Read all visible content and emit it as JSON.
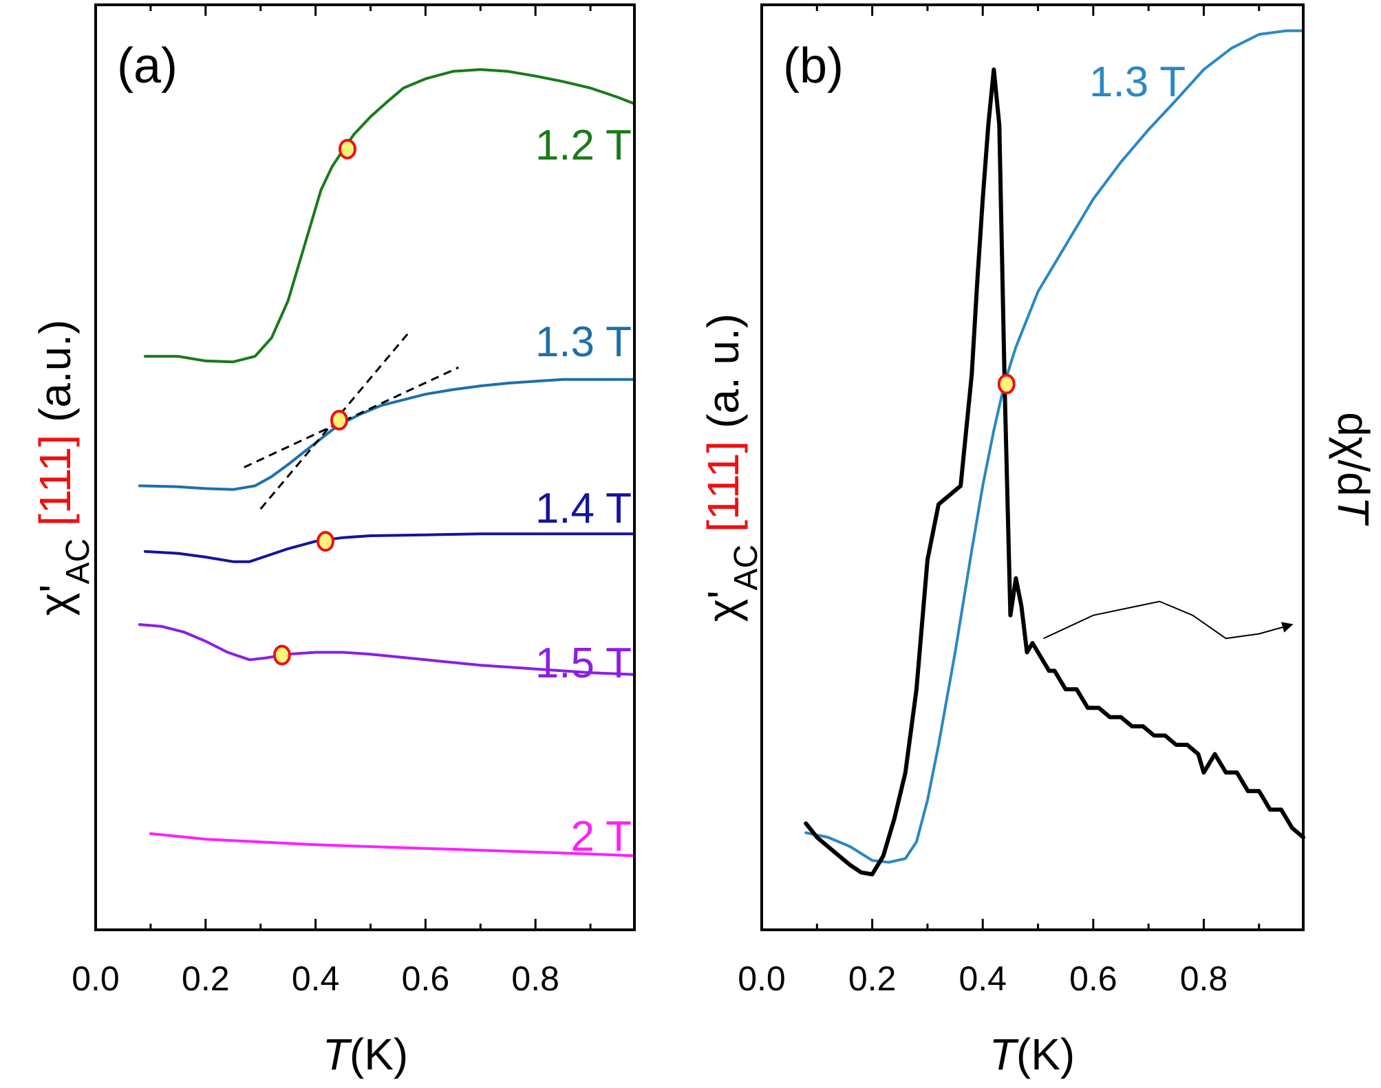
{
  "chart_data": [
    {
      "panel": "(a)",
      "type": "line",
      "xlabel_symbol": "T",
      "xlabel_unit": "(K)",
      "ylabel_prefix": "χ'",
      "ylabel_sub": "AC",
      "ylabel_index": "[111]",
      "ylabel_unit": "(a.u.)",
      "xlim": [
        0.0,
        0.98
      ],
      "ylim": [
        0,
        1
      ],
      "xticks": [
        "0.0",
        "0.2",
        "0.4",
        "0.6",
        "0.8"
      ],
      "xtick_values": [
        0.0,
        0.2,
        0.4,
        0.6,
        0.8
      ],
      "minor_xtick_values": [
        0.1,
        0.3,
        0.5,
        0.7,
        0.9
      ],
      "y_scale": "arbitrary units (curves offset vertically)",
      "series": [
        {
          "name": "1.2 T",
          "color": "#1a7a1a",
          "x": [
            0.09,
            0.15,
            0.2,
            0.25,
            0.29,
            0.32,
            0.35,
            0.37,
            0.39,
            0.41,
            0.43,
            0.45,
            0.47,
            0.5,
            0.53,
            0.56,
            0.6,
            0.65,
            0.7,
            0.75,
            0.8,
            0.85,
            0.9,
            0.95,
            0.98
          ],
          "y": [
            0.62,
            0.62,
            0.615,
            0.614,
            0.62,
            0.64,
            0.68,
            0.72,
            0.76,
            0.8,
            0.825,
            0.843,
            0.86,
            0.879,
            0.895,
            0.91,
            0.92,
            0.928,
            0.93,
            0.928,
            0.923,
            0.917,
            0.91,
            0.9,
            0.893
          ]
        },
        {
          "name": "1.3 T",
          "color": "#1f6fa8",
          "x": [
            0.08,
            0.15,
            0.2,
            0.25,
            0.29,
            0.32,
            0.35,
            0.38,
            0.41,
            0.44,
            0.48,
            0.52,
            0.56,
            0.6,
            0.65,
            0.7,
            0.75,
            0.8,
            0.85,
            0.9,
            0.95,
            0.98
          ],
          "y": [
            0.48,
            0.479,
            0.477,
            0.476,
            0.48,
            0.49,
            0.503,
            0.517,
            0.531,
            0.545,
            0.557,
            0.567,
            0.573,
            0.579,
            0.584,
            0.588,
            0.591,
            0.593,
            0.595,
            0.595,
            0.595,
            0.595
          ]
        },
        {
          "name": "1.4 T",
          "color": "#14149c",
          "x": [
            0.09,
            0.15,
            0.2,
            0.25,
            0.28,
            0.31,
            0.35,
            0.4,
            0.45,
            0.5,
            0.6,
            0.7,
            0.8,
            0.9,
            0.98
          ],
          "y": [
            0.409,
            0.407,
            0.403,
            0.398,
            0.398,
            0.404,
            0.412,
            0.42,
            0.424,
            0.426,
            0.427,
            0.428,
            0.428,
            0.428,
            0.428
          ]
        },
        {
          "name": "1.5 T",
          "color": "#8b1ee6",
          "x": [
            0.08,
            0.12,
            0.16,
            0.2,
            0.24,
            0.28,
            0.31,
            0.35,
            0.4,
            0.45,
            0.5,
            0.6,
            0.7,
            0.8,
            0.9,
            0.98
          ],
          "y": [
            0.33,
            0.328,
            0.322,
            0.312,
            0.3,
            0.292,
            0.294,
            0.298,
            0.3,
            0.3,
            0.298,
            0.292,
            0.286,
            0.282,
            0.278,
            0.276
          ]
        },
        {
          "name": "2 T",
          "color": "#ff1fff",
          "x": [
            0.1,
            0.2,
            0.3,
            0.4,
            0.5,
            0.6,
            0.7,
            0.8,
            0.9,
            0.98
          ],
          "y": [
            0.104,
            0.098,
            0.095,
            0.092,
            0.09,
            0.088,
            0.086,
            0.084,
            0.082,
            0.08
          ]
        }
      ],
      "markers": [
        {
          "series": "1.2 T",
          "x": 0.458,
          "y": 0.844
        },
        {
          "series": "1.3 T",
          "x": 0.443,
          "y": 0.551
        },
        {
          "series": "1.4 T",
          "x": 0.418,
          "y": 0.42
        },
        {
          "series": "1.5 T",
          "x": 0.339,
          "y": 0.297
        }
      ],
      "tangent_lines": [
        {
          "x": [
            0.3,
            0.57
          ],
          "y": [
            0.455,
            0.646
          ]
        },
        {
          "x": [
            0.27,
            0.66
          ],
          "y": [
            0.5,
            0.608
          ]
        }
      ]
    },
    {
      "panel": "(b)",
      "type": "line",
      "xlabel_symbol": "T",
      "xlabel_unit": "(K)",
      "ylabel_prefix": "χ'",
      "ylabel_sub": "AC",
      "ylabel_index": "[111]",
      "ylabel_unit": "(a. u.)",
      "right_ylabel": "dχ/d",
      "right_ylabel_symbol": "T",
      "xlim": [
        0.0,
        0.98
      ],
      "ylim": [
        0,
        1
      ],
      "xticks": [
        "0.0",
        "0.2",
        "0.4",
        "0.6",
        "0.8"
      ],
      "xtick_values": [
        0.0,
        0.2,
        0.4,
        0.6,
        0.8
      ],
      "minor_xtick_values": [
        0.1,
        0.3,
        0.5,
        0.7,
        0.9
      ],
      "y_scale": "arbitrary units",
      "series": [
        {
          "name": "1.3 T",
          "color": "#2a88c2",
          "axis": "left",
          "x": [
            0.08,
            0.12,
            0.16,
            0.2,
            0.23,
            0.26,
            0.28,
            0.3,
            0.32,
            0.35,
            0.38,
            0.4,
            0.42,
            0.44,
            0.46,
            0.48,
            0.5,
            0.55,
            0.6,
            0.65,
            0.7,
            0.75,
            0.8,
            0.85,
            0.9,
            0.95,
            0.98
          ],
          "y": [
            0.105,
            0.1,
            0.09,
            0.075,
            0.073,
            0.077,
            0.095,
            0.14,
            0.2,
            0.3,
            0.41,
            0.48,
            0.54,
            0.592,
            0.63,
            0.66,
            0.69,
            0.74,
            0.79,
            0.83,
            0.865,
            0.897,
            0.93,
            0.953,
            0.968,
            0.972,
            0.972
          ]
        },
        {
          "name": "dχ/dT",
          "color": "#000000",
          "axis": "right",
          "x": [
            0.08,
            0.1,
            0.12,
            0.14,
            0.16,
            0.18,
            0.2,
            0.22,
            0.24,
            0.26,
            0.28,
            0.3,
            0.32,
            0.34,
            0.36,
            0.38,
            0.39,
            0.4,
            0.41,
            0.42,
            0.43,
            0.44,
            0.45,
            0.46,
            0.47,
            0.48,
            0.49,
            0.5,
            0.51,
            0.52,
            0.53,
            0.55,
            0.57,
            0.59,
            0.61,
            0.63,
            0.65,
            0.67,
            0.69,
            0.71,
            0.73,
            0.75,
            0.77,
            0.79,
            0.8,
            0.82,
            0.84,
            0.86,
            0.88,
            0.9,
            0.92,
            0.94,
            0.96,
            0.98
          ],
          "y": [
            0.115,
            0.1,
            0.09,
            0.08,
            0.07,
            0.062,
            0.06,
            0.08,
            0.12,
            0.17,
            0.26,
            0.4,
            0.46,
            0.47,
            0.48,
            0.6,
            0.7,
            0.79,
            0.87,
            0.93,
            0.87,
            0.58,
            0.34,
            0.38,
            0.35,
            0.3,
            0.31,
            0.3,
            0.29,
            0.28,
            0.28,
            0.26,
            0.26,
            0.24,
            0.24,
            0.23,
            0.23,
            0.22,
            0.22,
            0.21,
            0.21,
            0.2,
            0.2,
            0.19,
            0.17,
            0.19,
            0.17,
            0.17,
            0.15,
            0.15,
            0.13,
            0.13,
            0.11,
            0.1
          ]
        }
      ],
      "markers": [
        {
          "series": "1.3 T",
          "x": 0.443,
          "y": 0.59
        }
      ],
      "annotations": [
        {
          "type": "arrow",
          "text": "",
          "points_x": [
            0.51,
            0.6,
            0.72,
            0.78,
            0.84,
            0.9,
            0.96
          ],
          "points_y": [
            0.315,
            0.34,
            0.355,
            0.34,
            0.315,
            0.32,
            0.33
          ]
        }
      ]
    }
  ]
}
